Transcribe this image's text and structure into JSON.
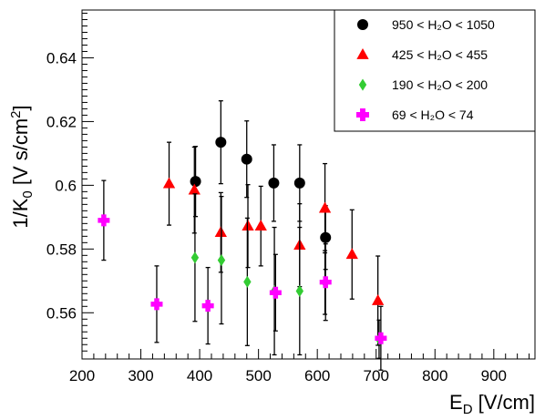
{
  "chart_data": {
    "type": "scatter",
    "xlabel": "E_D [V/cm]",
    "ylabel": "1/K_0 [V s/cm^2]",
    "xlim": [
      200,
      970
    ],
    "ylim": [
      0.5455,
      0.655
    ],
    "x_ticks": [
      200,
      300,
      400,
      500,
      600,
      700,
      800,
      900
    ],
    "y_ticks": [
      0.56,
      0.58,
      0.6,
      0.62,
      0.64
    ],
    "x_tick_labels": [
      "200",
      "300",
      "400",
      "500",
      "600",
      "700",
      "800",
      "900"
    ],
    "y_tick_labels": [
      "0.56",
      "0.58",
      "0.6",
      "0.62",
      "0.64"
    ],
    "grid": false,
    "legend_position": "top-right",
    "series": [
      {
        "name": "950 < H2O < 1050",
        "marker": "circle",
        "color": "#000000",
        "x": [
          393,
          436,
          480,
          526,
          570,
          614
        ],
        "y": [
          0.6012,
          0.6135,
          0.6082,
          0.6007,
          0.6007,
          0.5836
        ],
        "yerr": [
          0.011,
          0.013,
          0.012,
          0.012,
          0.012,
          0.01
        ]
      },
      {
        "name": "425 < H2O < 455",
        "marker": "triangle",
        "color": "#ff0000",
        "x": [
          348,
          391,
          436,
          482,
          504,
          570,
          613,
          659,
          703
        ],
        "y": [
          0.6005,
          0.5985,
          0.5852,
          0.5872,
          0.5872,
          0.5812,
          0.5928,
          0.5783,
          0.5638
        ],
        "yerr": [
          0.013,
          0.0135,
          0.0125,
          0.013,
          0.0125,
          0.013,
          0.014,
          0.014,
          0.014
        ]
      },
      {
        "name": "190 < H2O < 200",
        "marker": "diamond",
        "color": "#33cc33",
        "x": [
          392,
          437,
          481,
          527,
          570,
          613,
          705
        ],
        "y": [
          0.5773,
          0.5765,
          0.5697,
          0.5668,
          0.5668,
          0.5695,
          0.5517
        ],
        "yerr": [
          0.02,
          0.02,
          0.02,
          0.02,
          0.02,
          0.01,
          0.006
        ]
      },
      {
        "name": "69 < H2O < 74",
        "marker": "cross",
        "color": "#ff00ff",
        "x": [
          237,
          327,
          414,
          529,
          614,
          708
        ],
        "y": [
          0.589,
          0.5627,
          0.5622,
          0.5663,
          0.5696,
          0.552
        ],
        "yerr": [
          0.0125,
          0.012,
          0.012,
          0.012,
          0.012,
          0.01
        ]
      }
    ],
    "legend": [
      {
        "marker": "circle",
        "color": "#000000",
        "text": "950 < H₂O < 1050"
      },
      {
        "marker": "triangle",
        "color": "#ff0000",
        "text": "425 < H₂O <  455"
      },
      {
        "marker": "diamond",
        "color": "#33cc33",
        "text": "190 < H₂O <  200"
      },
      {
        "marker": "cross",
        "color": "#ff00ff",
        "text": " 69 < H₂O <   74"
      }
    ]
  }
}
